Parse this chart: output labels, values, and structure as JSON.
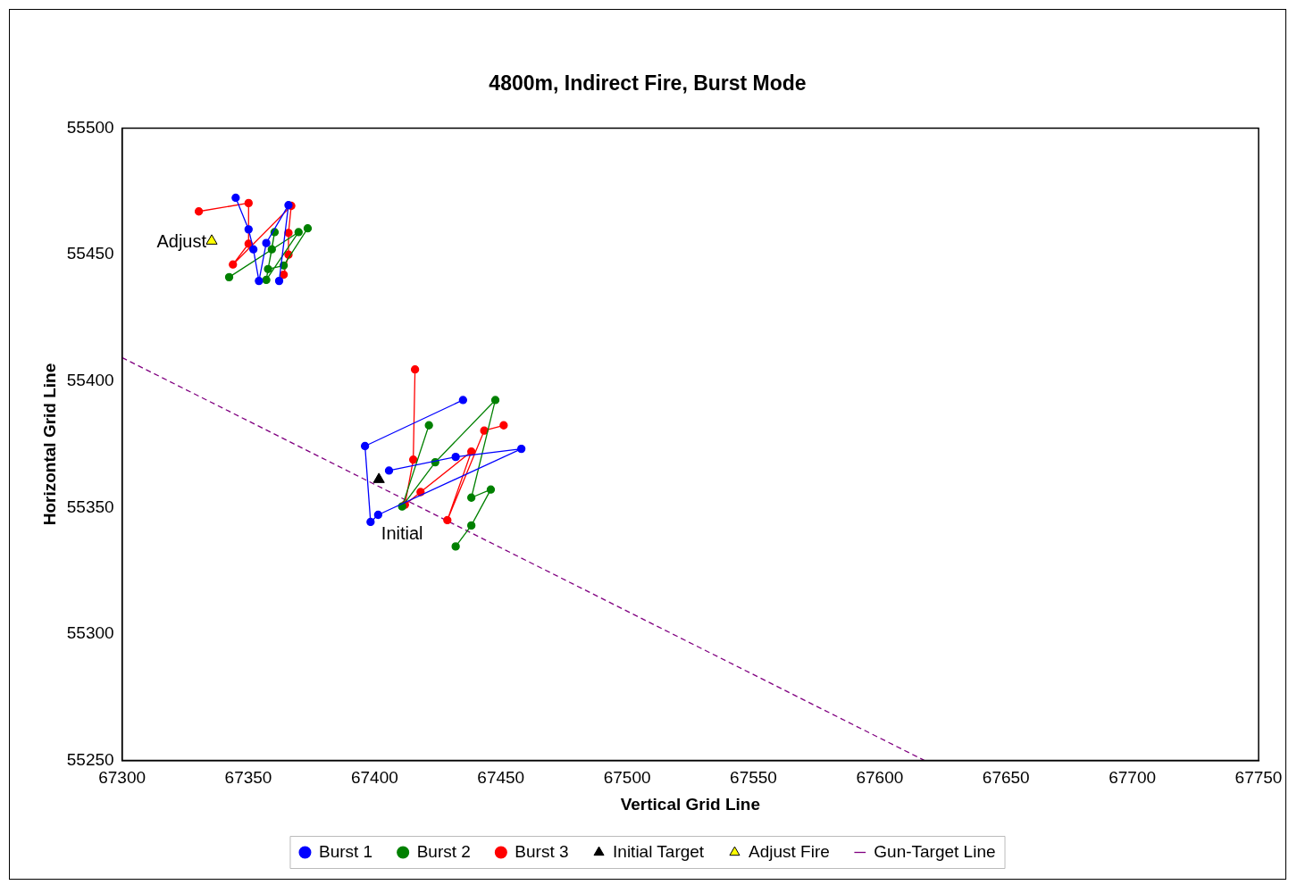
{
  "chart_data": {
    "type": "scatter",
    "title": "4800m, Indirect Fire, Burst Mode",
    "xlabel": "Vertical Grid Line",
    "ylabel": "Horizontal Grid Line",
    "xlim": [
      67300,
      67750
    ],
    "xticks": [
      67300,
      67350,
      67400,
      67450,
      67500,
      67550,
      67600,
      67650,
      67700,
      67750
    ],
    "ylim": [
      55250,
      55500
    ],
    "yticks": [
      55250,
      55300,
      55350,
      55400,
      55450,
      55500
    ],
    "grid": false,
    "legend": "bottom",
    "annotations": [
      {
        "text": "Adjust",
        "x": 67335.5,
        "y": 55455.4
      },
      {
        "text": "Initial",
        "x": 67401.7,
        "y": 55361.1
      }
    ],
    "series": [
      {
        "name": "Burst 1",
        "type": "line",
        "marker": "circle",
        "color": "#0000ff",
        "x": [
          67345.0,
          67350.1,
          67352.0,
          67354.2,
          67357.1,
          67365.9,
          67362.2,
          null,
          67405.7,
          67432.1,
          67458.1,
          67401.4,
          67398.4,
          67396.2,
          67435.0
        ],
        "values": [
          55472.5,
          55460.0,
          55452.1,
          55439.6,
          55454.6,
          55469.6,
          55439.6,
          null,
          55364.6,
          55370.0,
          55373.2,
          55347.1,
          55344.3,
          55374.3,
          55392.5
        ]
      },
      {
        "name": "Burst 2",
        "type": "line",
        "marker": "circle",
        "color": "#008000",
        "x": [
          67342.4,
          67369.9,
          67357.1,
          67360.4,
          67359.3,
          67357.8,
          67364.0,
          67373.5,
          null,
          67421.5,
          67410.9,
          67424.0,
          67447.8,
          67438.3,
          67446.0,
          67438.3,
          67432.1
        ],
        "values": [
          55441.1,
          55458.9,
          55440.0,
          55458.9,
          55452.1,
          55444.3,
          55445.7,
          55460.4,
          null,
          55382.5,
          55350.4,
          55367.9,
          55392.5,
          55353.9,
          55357.1,
          55342.9,
          55334.6
        ]
      },
      {
        "name": "Burst 3",
        "type": "line",
        "marker": "circle",
        "color": "#ff0000",
        "x": [
          67330.4,
          67350.1,
          67350.1,
          67343.9,
          67367.0,
          67365.9,
          67365.9,
          67364.0,
          null,
          67416.0,
          67415.3,
          67412.0,
          67418.2,
          67438.3,
          67428.8,
          67443.4,
          67451.1
        ],
        "values": [
          55467.1,
          55470.4,
          55454.3,
          55446.1,
          55469.3,
          55458.6,
          55450.0,
          55442.1,
          null,
          55404.6,
          55368.9,
          55351.1,
          55356.1,
          55372.1,
          55345.0,
          55380.4,
          55382.5
        ]
      },
      {
        "name": "Initial Target",
        "type": "scatter",
        "marker": "triangle",
        "color": "#000000",
        "x": [
          67401.7
        ],
        "values": [
          55361.1
        ]
      },
      {
        "name": "Adjust Fire",
        "type": "scatter",
        "marker": "triangle",
        "color": "#ffff00",
        "x": [
          67335.5
        ],
        "values": [
          55455.4
        ]
      },
      {
        "name": "Gun-Target Line",
        "type": "line",
        "marker": "none",
        "line_style": "dashed",
        "color": "#800080",
        "x": [
          67300,
          67617.6
        ],
        "values": [
          55409.3,
          55250
        ]
      }
    ]
  }
}
